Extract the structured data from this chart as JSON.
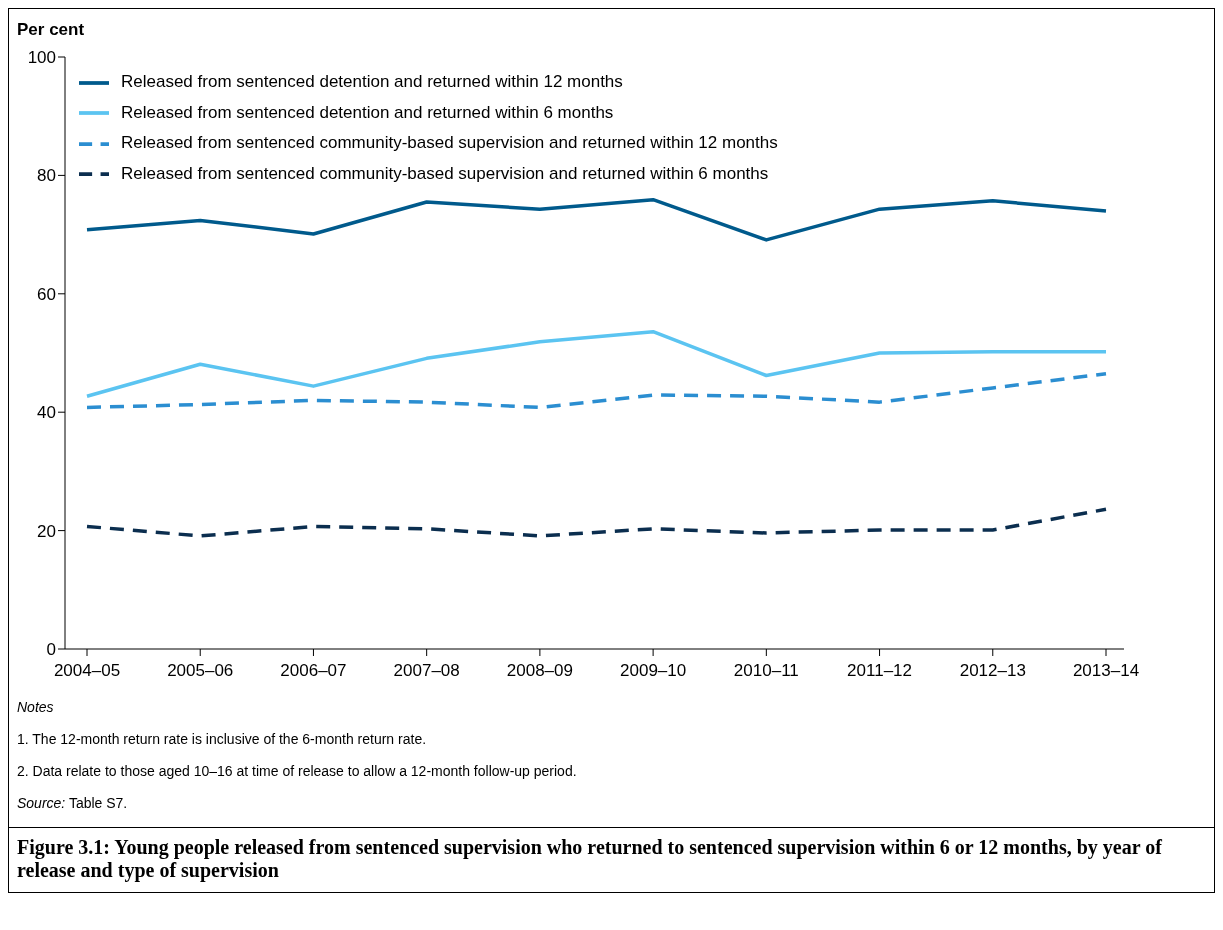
{
  "chart_data": {
    "type": "line",
    "title": "Figure 3.1: Young people released from sentenced supervision who returned to sentenced supervision within 6 or 12 months, by year of release and type of supervision",
    "ylabel": "Per cent",
    "categories": [
      "2004–05",
      "2005–06",
      "2006–07",
      "2007–08",
      "2008–09",
      "2009–10",
      "2010–11",
      "2011–12",
      "2012–13",
      "2013–14"
    ],
    "series": [
      {
        "name": "Released from sentenced detention and returned within 12 months",
        "color": "#005a8c",
        "line_style": "solid",
        "values": [
          70.8,
          72.4,
          70.1,
          75.5,
          74.3,
          75.9,
          69.1,
          74.3,
          75.7,
          74.0
        ]
      },
      {
        "name": "Released from sentenced detention and returned within 6 months",
        "color": "#5bc4f1",
        "line_style": "solid",
        "values": [
          42.7,
          48.1,
          44.4,
          49.1,
          51.9,
          53.6,
          46.2,
          50.0,
          50.2,
          50.2
        ]
      },
      {
        "name": "Released from sentenced community-based supervision and returned within 12 months",
        "color": "#2b8ed1",
        "line_style": "dashed",
        "values": [
          40.8,
          41.3,
          42.0,
          41.7,
          40.8,
          42.9,
          42.7,
          41.7,
          44.1,
          46.5
        ]
      },
      {
        "name": "Released from sentenced community-based supervision and returned within 6 months",
        "color": "#0b2e4f",
        "line_style": "dashed",
        "values": [
          20.7,
          19.1,
          20.7,
          20.3,
          19.1,
          20.3,
          19.6,
          20.1,
          20.1,
          23.6
        ]
      }
    ],
    "ylim": [
      0,
      100
    ],
    "yticks": [
      0,
      20,
      40,
      60,
      80,
      100
    ],
    "grid": false,
    "legend": "top left",
    "marker": "none",
    "annotations": [
      "Notes",
      "1. The 12-month return rate is inclusive of the 6-month return rate.",
      "2. Data relate to those aged 10–16 at time of release to allow a 12-month follow-up period.",
      "Source: Table S7."
    ]
  }
}
